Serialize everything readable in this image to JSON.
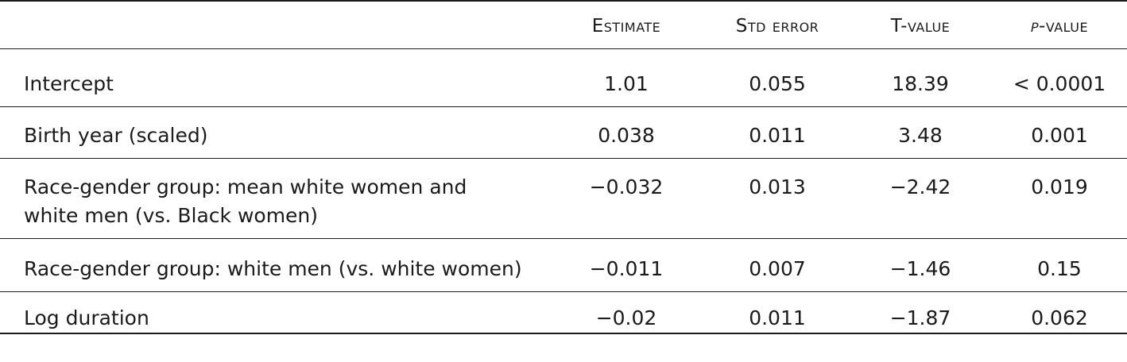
{
  "table": {
    "headers": {
      "label": "",
      "estimate": "Estimate",
      "std_error": "Std error",
      "t_value": "T-value",
      "p_value_p": "p",
      "p_value_rest": "-value"
    },
    "rows": [
      {
        "label": "Intercept",
        "estimate": "1.01",
        "std_error": "0.055",
        "t_value": "18.39",
        "p_value": "< 0.0001"
      },
      {
        "label": "Birth year (scaled)",
        "estimate": "0.038",
        "std_error": "0.011",
        "t_value": "3.48",
        "p_value": "0.001"
      },
      {
        "label_line1": "Race-gender group: mean white women and",
        "label_line2": "white men (vs. Black women)",
        "estimate": "−0.032",
        "std_error": "0.013",
        "t_value": "−2.42",
        "p_value": "0.019"
      },
      {
        "label": "Race-gender group: white men (vs. white women)",
        "estimate": "−0.011",
        "std_error": "0.007",
        "t_value": "−1.46",
        "p_value": "0.15"
      },
      {
        "label": "Log duration",
        "estimate": "−0.02",
        "std_error": "0.011",
        "t_value": "−1.87",
        "p_value": "0.062"
      }
    ]
  }
}
